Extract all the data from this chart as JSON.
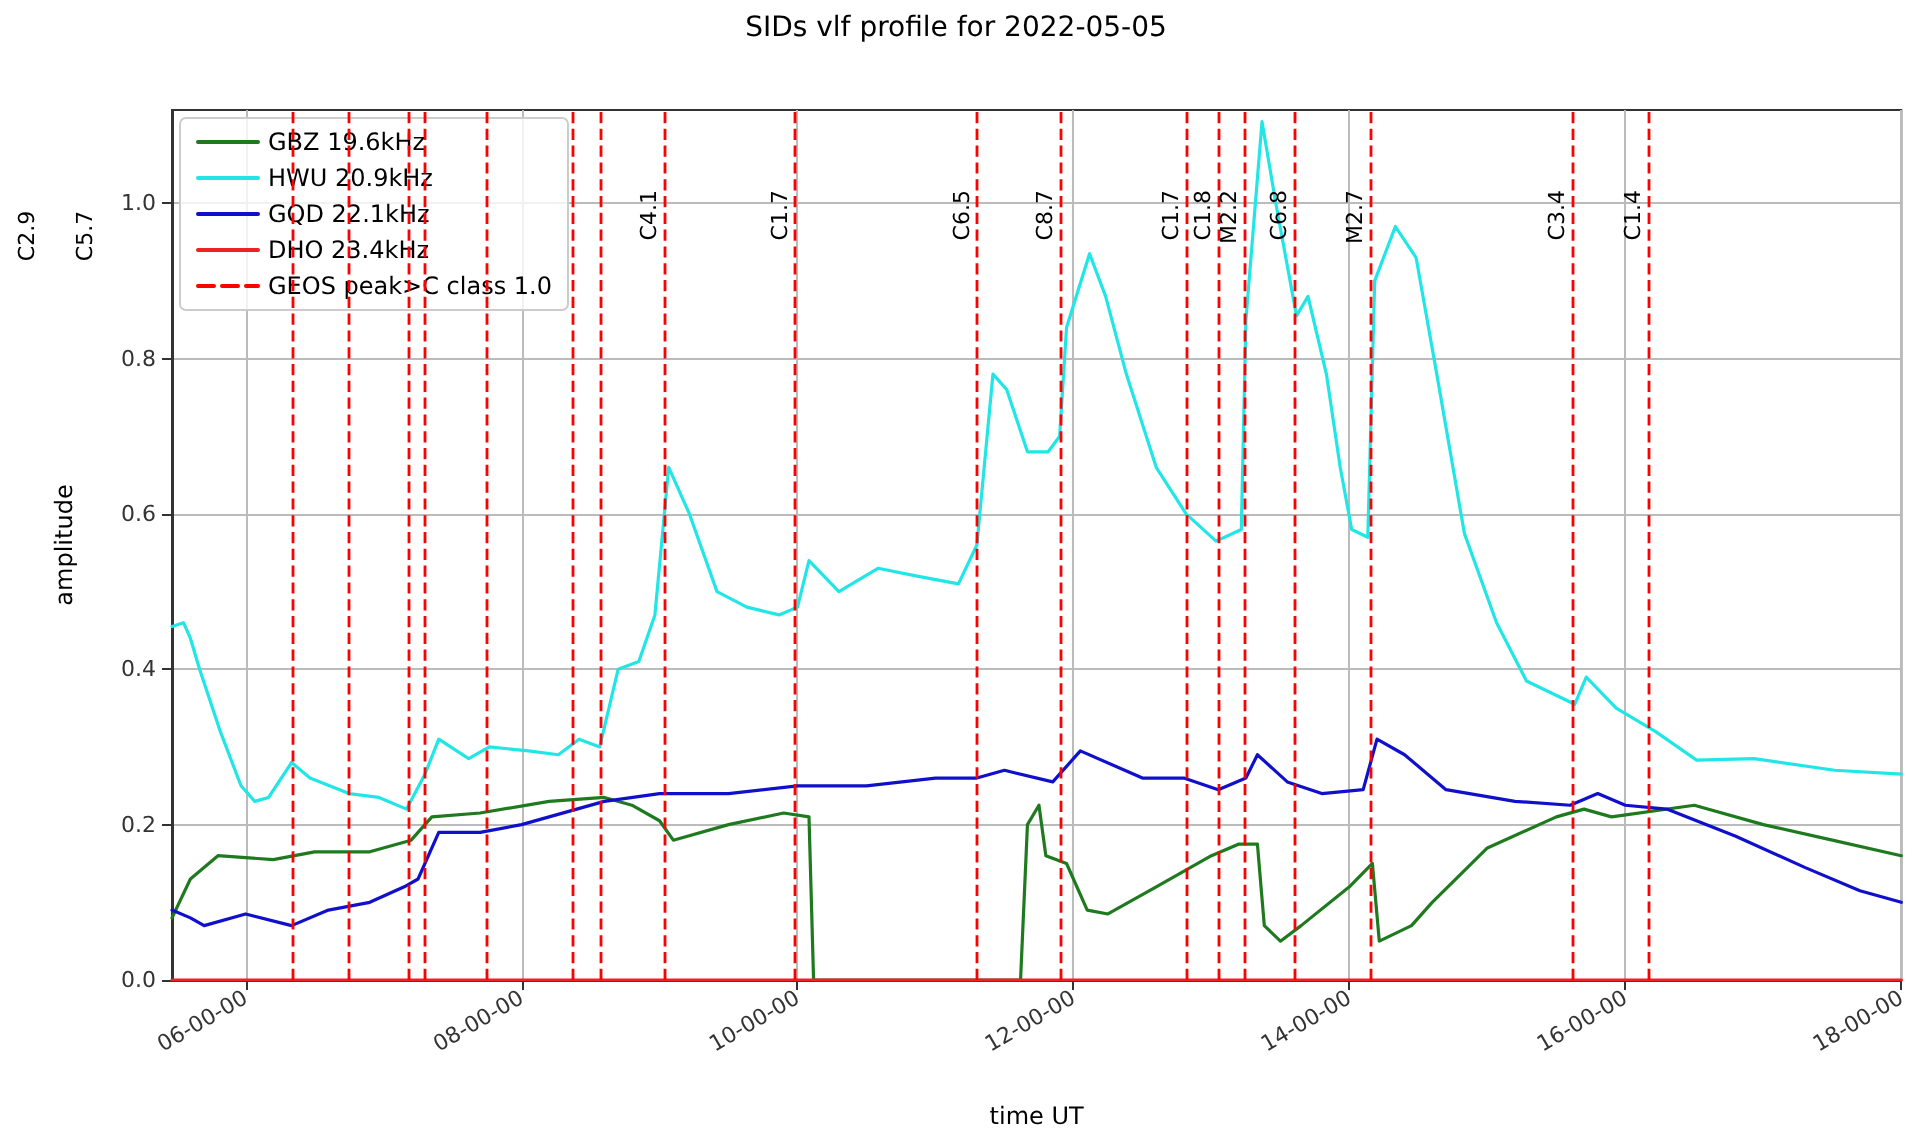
{
  "chart_data": {
    "type": "line",
    "title": "SIDs vlf profile for 2022-05-05",
    "xlabel": "time UT",
    "ylabel": "amplitude",
    "xlim": [
      "2022-05-05T05:28",
      "2022-05-05T18:00"
    ],
    "xticks": [
      {
        "value": "2022-05-05T06:00",
        "label": "06-00-00"
      },
      {
        "value": "2022-05-05T08:00",
        "label": "08-00-00"
      },
      {
        "value": "2022-05-05T10:00",
        "label": "10-00-00"
      },
      {
        "value": "2022-05-05T12:00",
        "label": "12-00-00"
      },
      {
        "value": "2022-05-05T14:00",
        "label": "14-00-00"
      },
      {
        "value": "2022-05-05T16:00",
        "label": "16-00-00"
      },
      {
        "value": "2022-05-05T18:00",
        "label": "18-00-00"
      }
    ],
    "ylim": [
      0,
      1.12
    ],
    "yticks": [
      {
        "value": 0,
        "label": "0.0"
      },
      {
        "value": 0.2,
        "label": "0.2"
      },
      {
        "value": 0.4,
        "label": "0.4"
      },
      {
        "value": 0.6,
        "label": "0.6"
      },
      {
        "value": 0.8,
        "label": "0.8"
      },
      {
        "value": 1.0,
        "label": "1.0"
      }
    ],
    "grid": true,
    "legend": "top left",
    "marker": "none",
    "line_style": "solid",
    "series": [
      {
        "name": "GBZ 19.6kHz",
        "color": "#1f7a1f",
        "x": [
          "2022-05-05T05:28",
          "2022-05-05T05:36",
          "2022-05-05T05:48",
          "2022-05-05T06:12",
          "2022-05-05T06:30",
          "2022-05-05T06:54",
          "2022-05-05T07:12",
          "2022-05-05T07:21",
          "2022-05-05T07:42",
          "2022-05-05T08:12",
          "2022-05-05T08:36",
          "2022-05-05T08:48",
          "2022-05-05T09:00",
          "2022-05-05T09:06",
          "2022-05-05T09:30",
          "2022-05-05T09:54",
          "2022-05-05T10:05",
          "2022-05-05T10:07",
          "2022-05-05T11:37",
          "2022-05-05T11:40",
          "2022-05-05T11:45",
          "2022-05-05T11:48",
          "2022-05-05T11:57",
          "2022-05-05T12:06",
          "2022-05-05T12:15",
          "2022-05-05T12:36",
          "2022-05-05T13:00",
          "2022-05-05T13:12",
          "2022-05-05T13:20",
          "2022-05-05T13:23",
          "2022-05-05T13:30",
          "2022-05-05T13:39",
          "2022-05-05T14:00",
          "2022-05-05T14:10",
          "2022-05-05T14:13",
          "2022-05-05T14:27",
          "2022-05-05T14:36",
          "2022-05-05T15:00",
          "2022-05-05T15:30",
          "2022-05-05T15:42",
          "2022-05-05T15:54",
          "2022-05-05T16:30",
          "2022-05-05T17:00",
          "2022-05-05T17:30",
          "2022-05-05T18:00"
        ],
        "values": [
          0.08,
          0.13,
          0.16,
          0.155,
          0.165,
          0.165,
          0.18,
          0.21,
          0.215,
          0.23,
          0.235,
          0.225,
          0.205,
          0.18,
          0.2,
          0.215,
          0.21,
          0,
          0,
          0.2,
          0.225,
          0.16,
          0.15,
          0.09,
          0.085,
          0.12,
          0.16,
          0.175,
          0.175,
          0.07,
          0.05,
          0.07,
          0.12,
          0.15,
          0.05,
          0.07,
          0.1,
          0.17,
          0.21,
          0.22,
          0.21,
          0.225,
          0.2,
          0.18,
          0.16
        ]
      },
      {
        "name": "HWU 20.9kHz",
        "color": "#22e6e6",
        "x": [
          "2022-05-05T05:28",
          "2022-05-05T05:33",
          "2022-05-05T05:36",
          "2022-05-05T05:40",
          "2022-05-05T05:49",
          "2022-05-05T05:58",
          "2022-05-05T06:04",
          "2022-05-05T06:10",
          "2022-05-05T06:20",
          "2022-05-05T06:28",
          "2022-05-05T06:45",
          "2022-05-05T06:58",
          "2022-05-05T07:10",
          "2022-05-05T07:18",
          "2022-05-05T07:24",
          "2022-05-05T07:37",
          "2022-05-05T07:46",
          "2022-05-05T08:03",
          "2022-05-05T08:16",
          "2022-05-05T08:25",
          "2022-05-05T08:34",
          "2022-05-05T08:42",
          "2022-05-05T08:51",
          "2022-05-05T08:58",
          "2022-05-05T09:04",
          "2022-05-05T09:13",
          "2022-05-05T09:25",
          "2022-05-05T09:38",
          "2022-05-05T09:52",
          "2022-05-05T10:00",
          "2022-05-05T10:05",
          "2022-05-05T10:18",
          "2022-05-05T10:35",
          "2022-05-05T10:52",
          "2022-05-05T11:10",
          "2022-05-05T11:18",
          "2022-05-05T11:25",
          "2022-05-05T11:31",
          "2022-05-05T11:40",
          "2022-05-05T11:49",
          "2022-05-05T11:54",
          "2022-05-05T11:57",
          "2022-05-05T12:07",
          "2022-05-05T12:14",
          "2022-05-05T12:23",
          "2022-05-05T12:36",
          "2022-05-05T12:49",
          "2022-05-05T13:02",
          "2022-05-05T13:13",
          "2022-05-05T13:15",
          "2022-05-05T13:22",
          "2022-05-05T13:28",
          "2022-05-05T13:37",
          "2022-05-05T13:42",
          "2022-05-05T13:50",
          "2022-05-05T13:56",
          "2022-05-05T14:01",
          "2022-05-05T14:08",
          "2022-05-05T14:11",
          "2022-05-05T14:20",
          "2022-05-05T14:29",
          "2022-05-05T14:38",
          "2022-05-05T14:50",
          "2022-05-05T15:04",
          "2022-05-05T15:17",
          "2022-05-05T15:38",
          "2022-05-05T15:43",
          "2022-05-05T15:56",
          "2022-05-05T16:13",
          "2022-05-05T16:31",
          "2022-05-05T16:56",
          "2022-05-05T17:31",
          "2022-05-05T18:00"
        ],
        "values": [
          0.455,
          0.46,
          0.44,
          0.4,
          0.32,
          0.25,
          0.23,
          0.235,
          0.28,
          0.26,
          0.24,
          0.235,
          0.22,
          0.265,
          0.31,
          0.285,
          0.3,
          0.295,
          0.29,
          0.31,
          0.3,
          0.4,
          0.41,
          0.47,
          0.66,
          0.6,
          0.5,
          0.48,
          0.47,
          0.48,
          0.54,
          0.5,
          0.53,
          0.52,
          0.51,
          0.56,
          0.78,
          0.76,
          0.68,
          0.68,
          0.7,
          0.84,
          0.935,
          0.88,
          0.78,
          0.66,
          0.6,
          0.565,
          0.58,
          0.85,
          1.105,
          1.0,
          0.855,
          0.88,
          0.78,
          0.66,
          0.58,
          0.57,
          0.9,
          0.97,
          0.93,
          0.78,
          0.575,
          0.46,
          0.385,
          0.355,
          0.39,
          0.35,
          0.32,
          0.283,
          0.285,
          0.27,
          0.265
        ]
      },
      {
        "name": "GQD 22.1kHz",
        "color": "#1010cc",
        "x": [
          "2022-05-05T05:28",
          "2022-05-05T05:36",
          "2022-05-05T05:42",
          "2022-05-05T06:00",
          "2022-05-05T06:20",
          "2022-05-05T06:36",
          "2022-05-05T06:54",
          "2022-05-05T07:09",
          "2022-05-05T07:15",
          "2022-05-05T07:24",
          "2022-05-05T07:42",
          "2022-05-05T08:00",
          "2022-05-05T08:24",
          "2022-05-05T08:36",
          "2022-05-05T09:00",
          "2022-05-05T09:30",
          "2022-05-05T10:00",
          "2022-05-05T10:30",
          "2022-05-05T11:00",
          "2022-05-05T11:18",
          "2022-05-05T11:30",
          "2022-05-05T11:51",
          "2022-05-05T12:03",
          "2022-05-05T12:30",
          "2022-05-05T12:48",
          "2022-05-05T13:03",
          "2022-05-05T13:15",
          "2022-05-05T13:20",
          "2022-05-05T13:33",
          "2022-05-05T13:48",
          "2022-05-05T14:06",
          "2022-05-05T14:12",
          "2022-05-05T14:24",
          "2022-05-05T14:42",
          "2022-05-05T15:12",
          "2022-05-05T15:36",
          "2022-05-05T15:48",
          "2022-05-05T16:00",
          "2022-05-05T16:18",
          "2022-05-05T16:48",
          "2022-05-05T17:18",
          "2022-05-05T17:42",
          "2022-05-05T18:00"
        ],
        "values": [
          0.09,
          0.08,
          0.07,
          0.085,
          0.07,
          0.09,
          0.1,
          0.12,
          0.13,
          0.19,
          0.19,
          0.2,
          0.22,
          0.23,
          0.24,
          0.24,
          0.25,
          0.25,
          0.26,
          0.26,
          0.27,
          0.255,
          0.295,
          0.26,
          0.26,
          0.245,
          0.26,
          0.29,
          0.255,
          0.24,
          0.245,
          0.31,
          0.29,
          0.245,
          0.23,
          0.225,
          0.24,
          0.225,
          0.22,
          0.185,
          0.145,
          0.115,
          0.1
        ]
      },
      {
        "name": "DHO 23.4kHz",
        "color": "#ee2222",
        "x": [
          "2022-05-05T05:28",
          "2022-05-05T18:00"
        ],
        "values": [
          0,
          0
        ]
      },
      {
        "name": "GEOS peak>C class 1.0",
        "color": "#ff0000",
        "line_style": "dashed"
      }
    ],
    "ref_lines": [
      {
        "axis": "x",
        "value": "2022-05-05T06:20",
        "label": null
      },
      {
        "axis": "x",
        "value": "2022-05-05T06:45",
        "label": null
      },
      {
        "axis": "x",
        "value": "2022-05-05T07:11",
        "label": null
      },
      {
        "axis": "x",
        "value": "2022-05-05T07:18",
        "label": null
      },
      {
        "axis": "x",
        "value": "2022-05-05T07:45",
        "label": null
      },
      {
        "axis": "x",
        "value": "2022-05-05T08:22",
        "label": null
      },
      {
        "axis": "x",
        "value": "2022-05-05T08:34",
        "label": null
      },
      {
        "axis": "x",
        "value": "2022-05-05T09:02",
        "label": "C4.1"
      },
      {
        "axis": "x",
        "value": "2022-05-05T09:59",
        "label": "C1.7"
      },
      {
        "axis": "x",
        "value": "2022-05-05T11:18",
        "label": "C6.5"
      },
      {
        "axis": "x",
        "value": "2022-05-05T11:54",
        "label": "C8.7"
      },
      {
        "axis": "x",
        "value": "2022-05-05T12:49",
        "label": "C1.7"
      },
      {
        "axis": "x",
        "value": "2022-05-05T13:03",
        "label": "C1.8"
      },
      {
        "axis": "x",
        "value": "2022-05-05T13:14",
        "label": "M2.2"
      },
      {
        "axis": "x",
        "value": "2022-05-05T13:36",
        "label": "C6.8"
      },
      {
        "axis": "x",
        "value": "2022-05-05T14:09",
        "label": "M2.7"
      },
      {
        "axis": "x",
        "value": "2022-05-05T15:37",
        "label": "C3.4"
      },
      {
        "axis": "x",
        "value": "2022-05-05T16:10",
        "label": "C1.4"
      }
    ],
    "annotations": [
      "C2.9",
      "C5.7"
    ]
  }
}
